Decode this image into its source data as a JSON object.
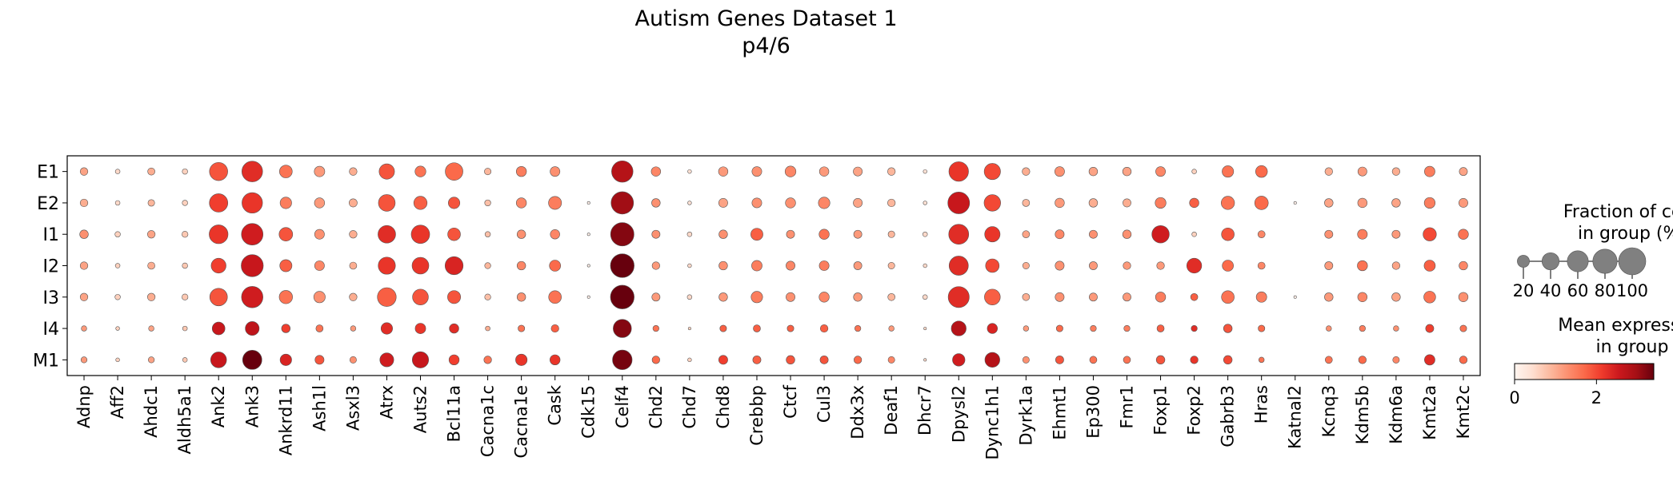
{
  "chart_data": {
    "type": "dotplot",
    "title": "Autism Genes Dataset 1",
    "subtitle": "p4/6",
    "groups": [
      "E1",
      "E2",
      "I1",
      "I2",
      "I3",
      "I4",
      "M1"
    ],
    "genes": [
      "Adnp",
      "Aff2",
      "Ahdc1",
      "Aldh5a1",
      "Ank2",
      "Ank3",
      "Ankrd11",
      "Ash1l",
      "Asxl3",
      "Atrx",
      "Auts2",
      "Bcl11a",
      "Cacna1c",
      "Cacna1e",
      "Cask",
      "Cdk15",
      "Celf4",
      "Chd2",
      "Chd7",
      "Chd8",
      "Crebbp",
      "Ctcf",
      "Cul3",
      "Ddx3x",
      "Deaf1",
      "Dhcr7",
      "Dpysl2",
      "Dync1h1",
      "Dyrk1a",
      "Ehmt1",
      "Ep300",
      "Fmr1",
      "Foxp1",
      "Foxp2",
      "Gabrb3",
      "Hras",
      "Katnal2",
      "Kcnq3",
      "Kdm5b",
      "Kdm6a",
      "Kmt2a",
      "Kmt2c"
    ],
    "fraction_pct": [
      [
        8,
        3,
        7,
        4,
        45,
        58,
        22,
        15,
        8,
        32,
        16,
        42,
        6,
        14,
        13,
        0,
        62,
        12,
        2,
        12,
        13,
        16,
        12,
        11,
        8,
        2,
        52,
        36,
        8,
        13,
        10,
        10,
        13,
        3,
        18,
        19,
        0,
        8,
        11,
        8,
        15,
        9
      ],
      [
        8,
        3,
        6,
        4,
        46,
        57,
        18,
        14,
        9,
        38,
        24,
        18,
        5,
        14,
        23,
        1,
        68,
        10,
        2,
        11,
        13,
        14,
        18,
        11,
        8,
        2,
        64,
        37,
        7,
        12,
        10,
        9,
        16,
        12,
        24,
        25,
        1,
        10,
        12,
        10,
        16,
        11
      ],
      [
        10,
        4,
        8,
        5,
        48,
        63,
        25,
        13,
        8,
        42,
        46,
        22,
        4,
        10,
        12,
        1,
        74,
        9,
        3,
        10,
        20,
        9,
        14,
        9,
        6,
        3,
        54,
        32,
        7,
        11,
        9,
        10,
        41,
        3,
        22,
        7,
        0,
        9,
        13,
        9,
        24,
        14
      ],
      [
        8,
        3,
        7,
        4,
        30,
        66,
        20,
        13,
        7,
        40,
        38,
        44,
        5,
        10,
        17,
        1,
        76,
        8,
        2,
        10,
        15,
        11,
        13,
        9,
        6,
        2,
        50,
        25,
        6,
        11,
        9,
        8,
        8,
        30,
        17,
        7,
        0,
        9,
        14,
        8,
        17,
        10
      ],
      [
        8,
        4,
        8,
        5,
        42,
        62,
        24,
        18,
        8,
        48,
        34,
        23,
        5,
        10,
        22,
        1,
        76,
        9,
        3,
        10,
        18,
        11,
        14,
        10,
        7,
        3,
        60,
        34,
        7,
        11,
        9,
        9,
        14,
        7,
        22,
        15,
        1,
        10,
        12,
        10,
        19,
        12
      ],
      [
        4,
        2,
        4,
        3,
        22,
        26,
        10,
        7,
        4,
        18,
        15,
        12,
        3,
        6,
        8,
        0,
        45,
        5,
        1,
        6,
        7,
        6,
        8,
        5,
        4,
        1,
        30,
        14,
        4,
        6,
        5,
        5,
        7,
        5,
        10,
        6,
        0,
        4,
        5,
        4,
        9,
        6
      ],
      [
        5,
        2,
        5,
        3,
        34,
        50,
        18,
        11,
        6,
        26,
        36,
        14,
        8,
        18,
        14,
        0,
        52,
        8,
        2,
        11,
        9,
        10,
        9,
        8,
        6,
        1,
        21,
        30,
        6,
        9,
        7,
        7,
        10,
        8,
        10,
        4,
        0,
        7,
        8,
        6,
        15,
        8
      ]
    ],
    "mean_expression": [
      [
        1.1,
        0.5,
        1.0,
        0.6,
        1.9,
        2.3,
        1.6,
        1.2,
        1.0,
        1.9,
        1.6,
        1.7,
        0.9,
        1.5,
        1.3,
        0.0,
        2.8,
        1.4,
        0.4,
        1.2,
        1.3,
        1.4,
        1.2,
        1.1,
        0.9,
        0.4,
        2.2,
        2.0,
        1.0,
        1.3,
        1.1,
        1.1,
        1.4,
        0.6,
        1.6,
        1.7,
        0.1,
        1.0,
        1.2,
        1.0,
        1.5,
        1.1
      ],
      [
        1.0,
        0.5,
        0.9,
        0.6,
        2.1,
        2.2,
        1.5,
        1.2,
        1.0,
        1.9,
        1.8,
        1.9,
        0.8,
        1.4,
        1.5,
        0.1,
        3.0,
        1.3,
        0.4,
        1.1,
        1.3,
        1.3,
        1.4,
        1.1,
        0.9,
        0.4,
        2.6,
        2.0,
        0.9,
        1.2,
        1.0,
        1.0,
        1.5,
        1.8,
        1.6,
        1.7,
        0.1,
        1.1,
        1.2,
        1.1,
        1.5,
        1.2
      ],
      [
        1.3,
        0.6,
        1.1,
        0.7,
        2.2,
        2.5,
        1.9,
        1.3,
        1.0,
        2.3,
        2.2,
        1.9,
        0.8,
        1.3,
        1.4,
        0.1,
        3.2,
        1.3,
        0.5,
        1.3,
        1.8,
        1.3,
        1.6,
        1.2,
        0.9,
        0.5,
        2.3,
        2.2,
        1.1,
        1.4,
        1.3,
        1.3,
        2.5,
        0.6,
        1.9,
        1.4,
        0.1,
        1.3,
        1.5,
        1.2,
        2.0,
        1.6
      ],
      [
        1.1,
        0.6,
        1.0,
        0.7,
        2.1,
        2.6,
        1.8,
        1.4,
        1.0,
        2.2,
        2.2,
        2.4,
        0.9,
        1.4,
        1.7,
        0.1,
        3.4,
        1.2,
        0.5,
        1.3,
        1.5,
        1.4,
        1.5,
        1.2,
        0.9,
        0.5,
        2.3,
        2.0,
        1.0,
        1.3,
        1.2,
        1.2,
        1.2,
        2.3,
        1.7,
        1.4,
        0.1,
        1.2,
        1.6,
        1.1,
        1.8,
        1.4
      ],
      [
        1.1,
        0.6,
        1.0,
        0.7,
        1.9,
        2.5,
        1.6,
        1.3,
        1.0,
        1.8,
        1.9,
        1.9,
        0.8,
        1.3,
        1.6,
        0.1,
        3.4,
        1.2,
        0.5,
        1.2,
        1.5,
        1.3,
        1.4,
        1.2,
        0.9,
        0.5,
        2.3,
        1.8,
        1.0,
        1.3,
        1.2,
        1.2,
        1.5,
        1.8,
        1.6,
        1.5,
        0.1,
        1.2,
        1.4,
        1.1,
        1.6,
        1.3
      ],
      [
        1.2,
        0.6,
        1.1,
        0.7,
        2.6,
        2.7,
        2.1,
        1.6,
        1.2,
        2.3,
        2.2,
        2.3,
        1.0,
        1.6,
        1.8,
        0.1,
        3.2,
        1.6,
        0.6,
        1.8,
        1.8,
        1.8,
        1.8,
        1.6,
        1.2,
        0.5,
        2.8,
        2.4,
        1.2,
        1.7,
        1.5,
        1.5,
        1.8,
        2.3,
        1.9,
        1.7,
        0.1,
        1.3,
        1.5,
        1.3,
        2.1,
        1.6
      ],
      [
        1.2,
        0.6,
        1.1,
        0.7,
        2.6,
        3.4,
        2.4,
        1.9,
        1.3,
        2.5,
        2.6,
        2.1,
        1.6,
        2.2,
        2.2,
        0.1,
        3.3,
        1.7,
        0.6,
        2.1,
        1.8,
        1.9,
        1.9,
        1.7,
        1.4,
        0.5,
        2.5,
        2.8,
        1.3,
        1.9,
        1.6,
        1.6,
        1.9,
        2.2,
        2.0,
        1.6,
        0.1,
        1.6,
        1.7,
        1.4,
        2.3,
        1.7
      ]
    ],
    "size_legend": {
      "title_line1": "Fraction of cells",
      "title_line2": "in group (%)",
      "values": [
        20,
        40,
        60,
        80,
        100
      ],
      "labels": [
        "20",
        "40",
        "60",
        "80",
        "100"
      ]
    },
    "color_legend": {
      "title_line1": "Mean expression",
      "title_line2": "in group",
      "min": 0,
      "max": 3.4,
      "ticks": [
        0,
        2
      ],
      "tick_labels": [
        "0",
        "2"
      ],
      "colormap": "Reds"
    }
  }
}
